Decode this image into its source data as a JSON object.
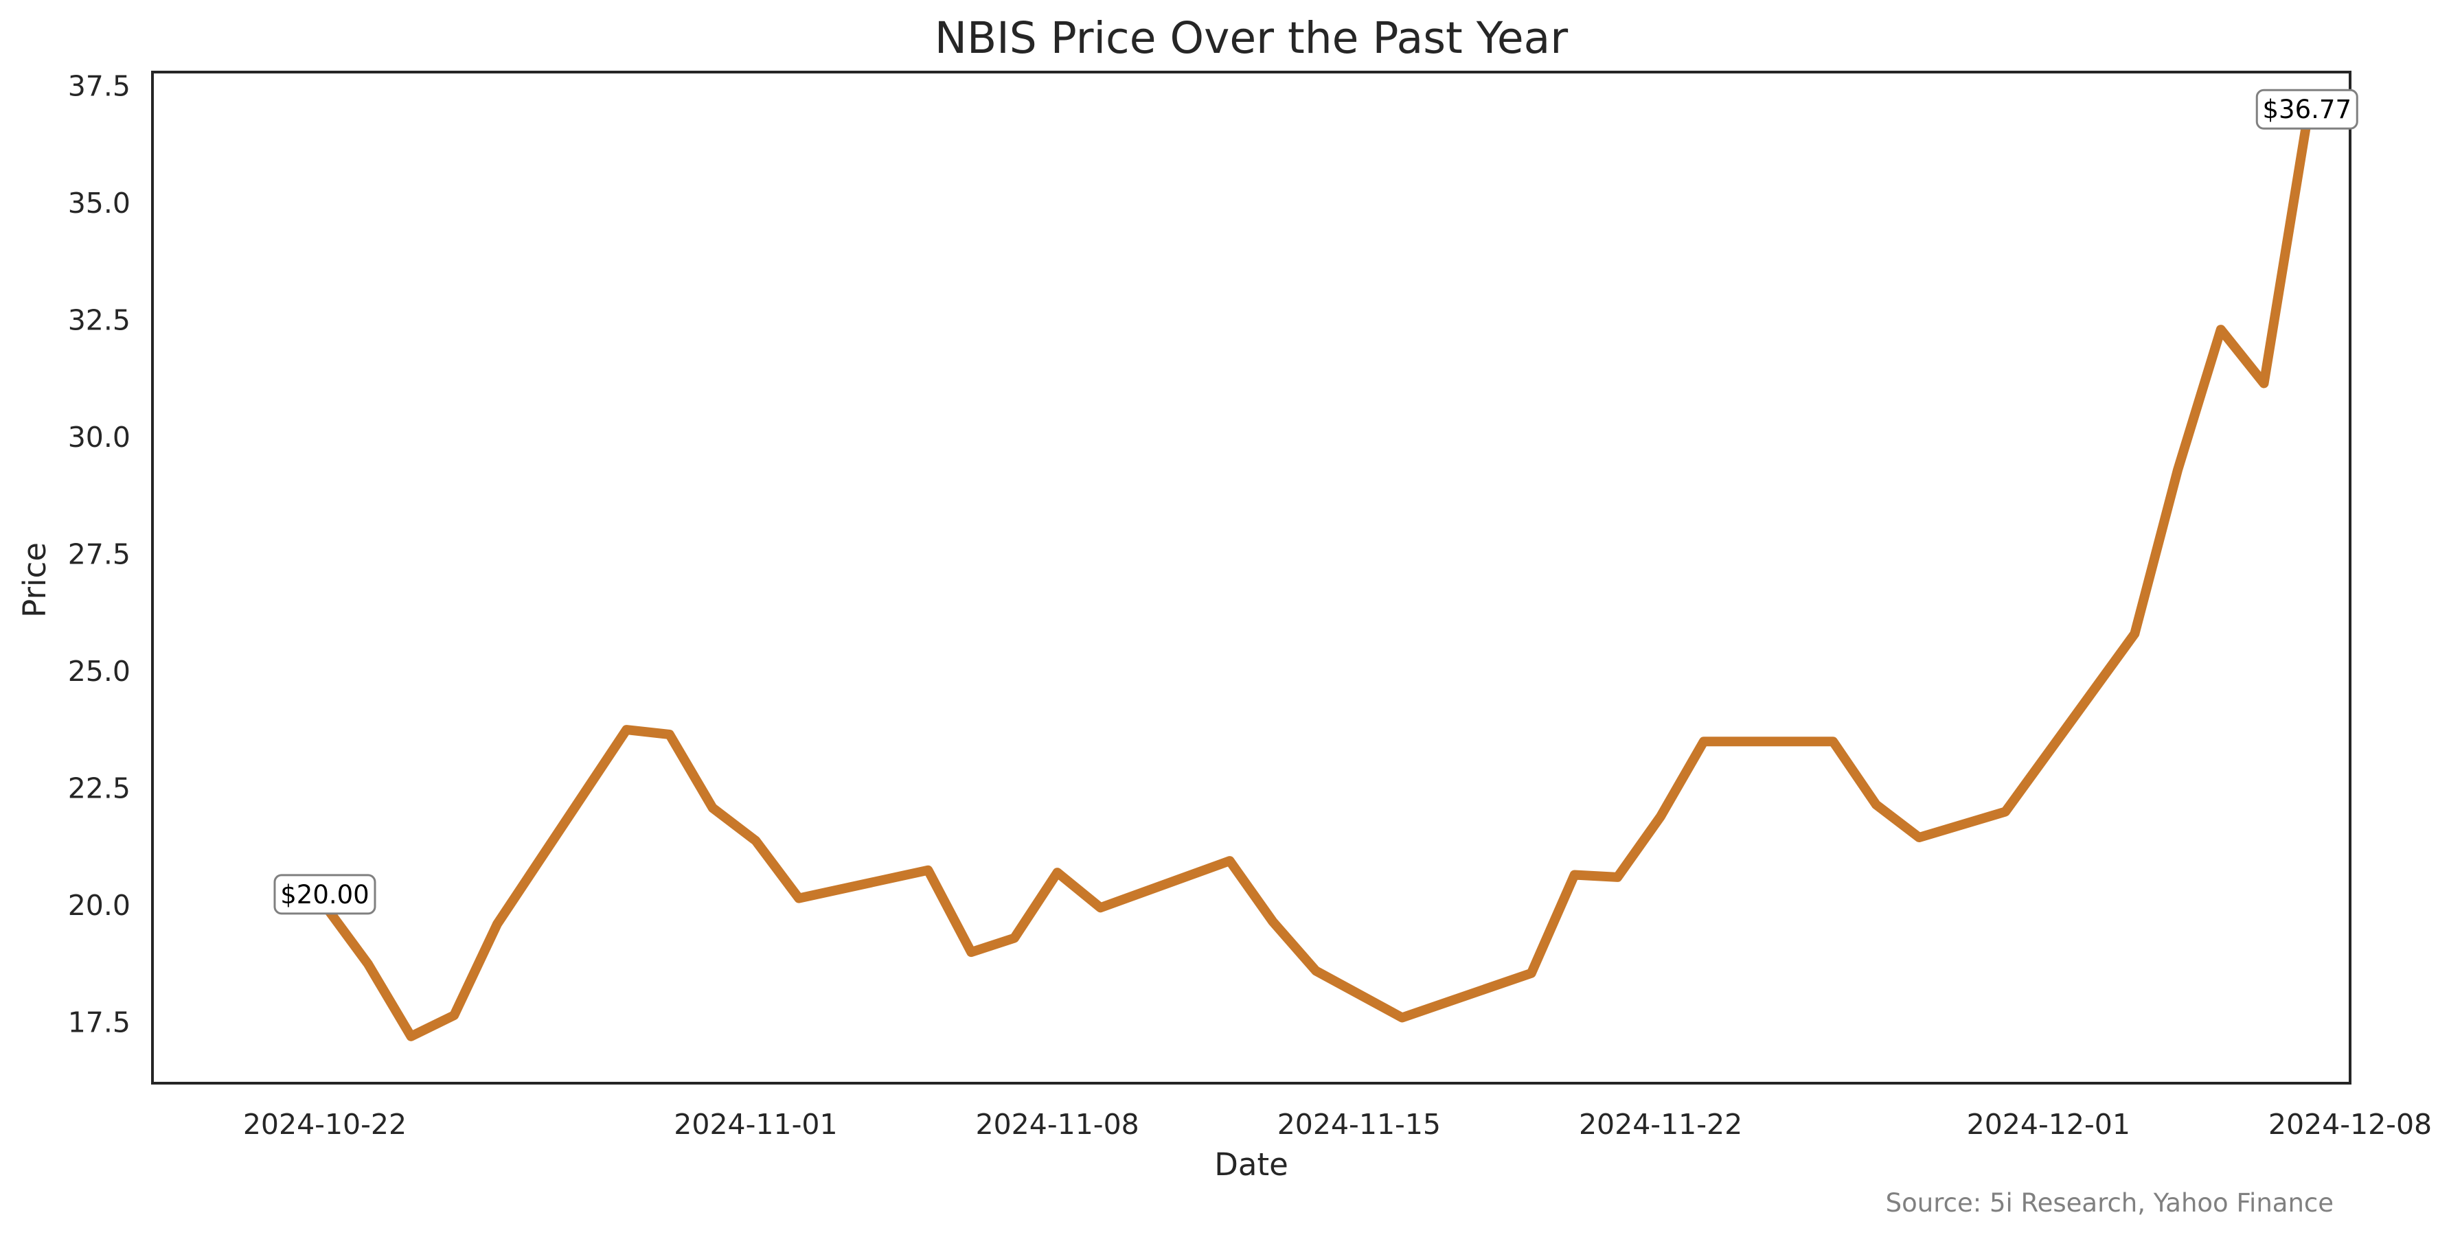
{
  "chart_data": {
    "type": "line",
    "title": "NBIS Price Over the Past Year",
    "xlabel": "Date",
    "ylabel": "Price",
    "source": "Source: 5i Research, Yahoo Finance",
    "xlim": [
      "2024-10-18",
      "2024-12-08"
    ],
    "ylim": [
      16.2,
      37.8
    ],
    "x_ticks": [
      "2024-10-22",
      "2024-11-01",
      "2024-11-08",
      "2024-11-15",
      "2024-11-22",
      "2024-12-01",
      "2024-12-08"
    ],
    "y_ticks": [
      "17.5",
      "20.0",
      "22.5",
      "25.0",
      "27.5",
      "30.0",
      "32.5",
      "35.0",
      "37.5"
    ],
    "grid": false,
    "line_color": "#c8782a",
    "series": [
      {
        "x": [
          "2024-10-22",
          "2024-10-23",
          "2024-10-24",
          "2024-10-25",
          "2024-10-26",
          "2024-10-29",
          "2024-10-30",
          "2024-10-31",
          "2024-11-01",
          "2024-11-02",
          "2024-11-05",
          "2024-11-06",
          "2024-11-07",
          "2024-11-08",
          "2024-11-09",
          "2024-11-12",
          "2024-11-13",
          "2024-11-14",
          "2024-11-16",
          "2024-11-19",
          "2024-11-20",
          "2024-11-21",
          "2024-11-22",
          "2024-11-23",
          "2024-11-26",
          "2024-11-27",
          "2024-11-28",
          "2024-11-30",
          "2024-12-03",
          "2024-12-04",
          "2024-12-05",
          "2024-12-06",
          "2024-12-07"
        ],
        "y": [
          20.0,
          18.75,
          17.2,
          17.65,
          19.6,
          23.75,
          23.65,
          22.08,
          21.38,
          20.15,
          20.75,
          19.0,
          19.3,
          20.7,
          19.95,
          20.95,
          19.65,
          18.6,
          17.6,
          18.55,
          20.65,
          20.6,
          21.9,
          23.5,
          23.5,
          22.15,
          21.45,
          22.0,
          25.8,
          29.3,
          32.3,
          31.15,
          36.77
        ]
      }
    ],
    "annotations": [
      {
        "x": "2024-10-22",
        "y": 20.0,
        "text": "$20.00"
      },
      {
        "x": "2024-12-07",
        "y": 36.77,
        "text": "$36.77"
      }
    ]
  }
}
